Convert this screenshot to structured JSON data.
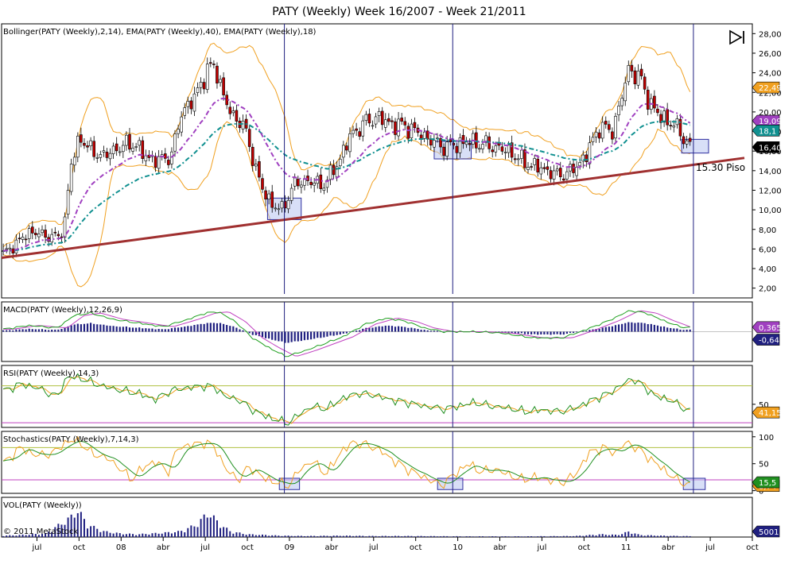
{
  "title": "PATY (Weekly)  Week 16/2007 - Week 21/2011",
  "copyright": "© 2011 MetaStock",
  "annotation": "15.30 Piso",
  "x_axis": {
    "labels": [
      "jul",
      "oct",
      "08",
      "abr",
      "jul",
      "oct",
      "09",
      "abr",
      "jul",
      "oct",
      "10",
      "abr",
      "jul",
      "oct",
      "11",
      "abr",
      "jul",
      "oct"
    ],
    "positions": [
      2007.5,
      2007.75,
      2008.0,
      2008.25,
      2008.5,
      2008.75,
      2009.0,
      2009.25,
      2009.5,
      2009.75,
      2010.0,
      2010.25,
      2010.5,
      2010.75,
      2011.0,
      2011.25,
      2011.5,
      2011.75
    ],
    "xlim": [
      2007.29,
      2011.75
    ]
  },
  "colors": {
    "candle_up": "#ffffff",
    "candle_down": "#c00000",
    "bollinger": "#f0a020",
    "ema40": "#109090",
    "ema18": "#a040c0",
    "trendline": "#a03030",
    "vline": "#202080",
    "macd_line": "#20a020",
    "macd_signal": "#c040c0",
    "macd_hist": "#202080",
    "rsi_line": "#209020",
    "rsi_signal": "#f0a020",
    "stoch_k": "#f0a020",
    "stoch_d": "#209020",
    "volume": "#202080",
    "box_fill": "#b8c4f0",
    "box_stroke": "#3030a0",
    "ref_line_upper": "#b0c040",
    "ref_line_lower": "#c040c0"
  },
  "chart_data": [
    {
      "type": "candlestick",
      "name": "price",
      "label": "Bollinger(PATY (Weekly),2,14), EMA(PATY (Weekly),40), EMA(PATY (Weekly),18)",
      "ylim": [
        1,
        29
      ],
      "yticks": [
        2,
        4,
        6,
        8,
        10,
        12,
        14,
        16,
        18,
        20,
        22,
        24,
        26,
        28
      ],
      "ytick_labels": [
        "2,00",
        "4,00",
        "6,00",
        "8,00",
        "10,00",
        "12,00",
        "14,00",
        "16,00",
        "18,00",
        "20,00",
        "22,00",
        "24,00",
        "26,00",
        "28,00"
      ],
      "close_key": [
        [
          2007.3,
          5.5
        ],
        [
          2007.38,
          6.6
        ],
        [
          2007.46,
          7.8
        ],
        [
          2007.54,
          7.4
        ],
        [
          2007.62,
          7.2
        ],
        [
          2007.66,
          8.0
        ],
        [
          2007.7,
          14.5
        ],
        [
          2007.76,
          17.5
        ],
        [
          2007.82,
          16.0
        ],
        [
          2007.9,
          15.5
        ],
        [
          2008.0,
          16.5
        ],
        [
          2008.08,
          16.8
        ],
        [
          2008.14,
          15.5
        ],
        [
          2008.22,
          15.0
        ],
        [
          2008.3,
          15.6
        ],
        [
          2008.36,
          20.0
        ],
        [
          2008.44,
          21.5
        ],
        [
          2008.5,
          24.0
        ],
        [
          2008.56,
          24.8
        ],
        [
          2008.6,
          22.0
        ],
        [
          2008.66,
          19.5
        ],
        [
          2008.72,
          19.0
        ],
        [
          2008.78,
          15.5
        ],
        [
          2008.84,
          12.0
        ],
        [
          2008.9,
          10.5
        ],
        [
          2008.96,
          10.0
        ],
        [
          2009.02,
          12.5
        ],
        [
          2009.1,
          13.0
        ],
        [
          2009.2,
          12.5
        ],
        [
          2009.28,
          14.5
        ],
        [
          2009.36,
          17.5
        ],
        [
          2009.44,
          18.8
        ],
        [
          2009.52,
          19.5
        ],
        [
          2009.6,
          18.8
        ],
        [
          2009.7,
          18.5
        ],
        [
          2009.8,
          17.5
        ],
        [
          2009.9,
          16.5
        ],
        [
          2009.98,
          16.5
        ],
        [
          2010.04,
          17.0
        ],
        [
          2010.12,
          16.8
        ],
        [
          2010.2,
          16.5
        ],
        [
          2010.3,
          16.0
        ],
        [
          2010.4,
          14.8
        ],
        [
          2010.5,
          14.2
        ],
        [
          2010.6,
          13.5
        ],
        [
          2010.68,
          14.0
        ],
        [
          2010.76,
          15.5
        ],
        [
          2010.84,
          18.5
        ],
        [
          2010.92,
          18.0
        ],
        [
          2010.98,
          22.0
        ],
        [
          2011.02,
          24.5
        ],
        [
          2011.08,
          23.5
        ],
        [
          2011.14,
          21.0
        ],
        [
          2011.2,
          19.5
        ],
        [
          2011.26,
          19.0
        ],
        [
          2011.32,
          18.0
        ],
        [
          2011.38,
          16.4
        ]
      ],
      "bands": {
        "period": 14,
        "stdev": 2
      },
      "ema_periods": [
        40,
        18
      ],
      "trendline": {
        "from": [
          2007.29,
          5.1
        ],
        "to": [
          2011.75,
          15.5
        ]
      },
      "vlines": [
        2008.97,
        2009.97,
        2011.4
      ],
      "boxes": [
        {
          "x": [
            2008.87,
            2009.07
          ],
          "y": [
            9.0,
            11.2
          ]
        },
        {
          "x": [
            2009.86,
            2010.08
          ],
          "y": [
            15.2,
            17.0
          ]
        },
        {
          "x": [
            2011.33,
            2011.49
          ],
          "y": [
            15.8,
            17.2
          ]
        }
      ],
      "last_values": [
        {
          "label": "22,49",
          "value": 22.49,
          "color": "#f0a020"
        },
        {
          "label": "19,09",
          "value": 19.09,
          "color": "#a040c0"
        },
        {
          "label": "18,1",
          "value": 18.1,
          "color": "#109090"
        },
        {
          "label": "16,40",
          "value": 16.4,
          "color": "#000000"
        }
      ]
    },
    {
      "type": "macd",
      "name": "macd",
      "label": "MACD(PATY (Weekly),12,26,9)",
      "ylim": [
        -2.4,
        2.4
      ],
      "line_key": [
        [
          2007.3,
          0.2
        ],
        [
          2007.45,
          0.5
        ],
        [
          2007.62,
          0.3
        ],
        [
          2007.72,
          1.3
        ],
        [
          2007.82,
          1.5
        ],
        [
          2007.95,
          1.0
        ],
        [
          2008.1,
          0.7
        ],
        [
          2008.25,
          0.4
        ],
        [
          2008.4,
          1.0
        ],
        [
          2008.5,
          1.5
        ],
        [
          2008.58,
          1.6
        ],
        [
          2008.68,
          0.8
        ],
        [
          2008.78,
          -0.5
        ],
        [
          2008.88,
          -1.3
        ],
        [
          2008.98,
          -2.0
        ],
        [
          2009.1,
          -1.5
        ],
        [
          2009.22,
          -0.9
        ],
        [
          2009.32,
          -0.4
        ],
        [
          2009.45,
          0.6
        ],
        [
          2009.58,
          1.1
        ],
        [
          2009.7,
          0.8
        ],
        [
          2009.8,
          0.3
        ],
        [
          2009.92,
          0.0
        ],
        [
          2010.1,
          0.0
        ],
        [
          2010.25,
          -0.1
        ],
        [
          2010.45,
          -0.5
        ],
        [
          2010.62,
          -0.5
        ],
        [
          2010.75,
          0.1
        ],
        [
          2010.9,
          0.9
        ],
        [
          2011.02,
          1.7
        ],
        [
          2011.12,
          1.5
        ],
        [
          2011.22,
          0.9
        ],
        [
          2011.32,
          0.4
        ],
        [
          2011.4,
          0.3
        ]
      ],
      "signal_period": 9,
      "last_values": [
        {
          "label": "0,365",
          "value": 0.365,
          "color": "#a040c0"
        },
        {
          "label": "-0,643",
          "value": -0.643,
          "color": "#202080"
        }
      ]
    },
    {
      "type": "rsi",
      "name": "rsi",
      "label": "RSI(PATY (Weekly),14,3)",
      "ylim": [
        25,
        92
      ],
      "yticks": [
        50
      ],
      "ytick_labels": [
        "50"
      ],
      "ref_lines": [
        70,
        30
      ],
      "line_key": [
        [
          2007.3,
          64
        ],
        [
          2007.4,
          72
        ],
        [
          2007.5,
          68
        ],
        [
          2007.62,
          58
        ],
        [
          2007.68,
          80
        ],
        [
          2007.76,
          78
        ],
        [
          2007.88,
          70
        ],
        [
          2008.0,
          65
        ],
        [
          2008.1,
          62
        ],
        [
          2008.2,
          55
        ],
        [
          2008.3,
          65
        ],
        [
          2008.4,
          68
        ],
        [
          2008.5,
          70
        ],
        [
          2008.56,
          68
        ],
        [
          2008.62,
          58
        ],
        [
          2008.7,
          55
        ],
        [
          2008.78,
          44
        ],
        [
          2008.86,
          37
        ],
        [
          2008.94,
          32
        ],
        [
          2009.0,
          30
        ],
        [
          2009.06,
          40
        ],
        [
          2009.14,
          48
        ],
        [
          2009.22,
          45
        ],
        [
          2009.3,
          55
        ],
        [
          2009.4,
          62
        ],
        [
          2009.5,
          60
        ],
        [
          2009.6,
          55
        ],
        [
          2009.7,
          52
        ],
        [
          2009.8,
          48
        ],
        [
          2009.92,
          45
        ],
        [
          2010.0,
          48
        ],
        [
          2010.1,
          52
        ],
        [
          2010.2,
          48
        ],
        [
          2010.3,
          46
        ],
        [
          2010.4,
          42
        ],
        [
          2010.5,
          44
        ],
        [
          2010.6,
          42
        ],
        [
          2010.7,
          46
        ],
        [
          2010.8,
          55
        ],
        [
          2010.9,
          62
        ],
        [
          2010.98,
          72
        ],
        [
          2011.04,
          78
        ],
        [
          2011.1,
          70
        ],
        [
          2011.18,
          58
        ],
        [
          2011.26,
          55
        ],
        [
          2011.34,
          46
        ],
        [
          2011.4,
          41
        ]
      ],
      "signal_period": 3,
      "last_values": [
        {
          "label": "41,15",
          "value": 41.15,
          "color": "#f0a020"
        }
      ]
    },
    {
      "type": "stochastic",
      "name": "stochastic",
      "label": "Stochastics(PATY (Weekly),7,14,3)",
      "ylim": [
        -5,
        110
      ],
      "yticks": [
        100,
        50,
        0
      ],
      "ytick_labels": [
        "100",
        "50",
        "0"
      ],
      "ref_lines": [
        80,
        20
      ],
      "k_key": [
        [
          2007.3,
          50
        ],
        [
          2007.4,
          80
        ],
        [
          2007.5,
          65
        ],
        [
          2007.6,
          70
        ],
        [
          2007.66,
          88
        ],
        [
          2007.74,
          95
        ],
        [
          2007.82,
          70
        ],
        [
          2007.92,
          60
        ],
        [
          2008.0,
          40
        ],
        [
          2008.06,
          20
        ],
        [
          2008.12,
          40
        ],
        [
          2008.2,
          55
        ],
        [
          2008.28,
          35
        ],
        [
          2008.34,
          80
        ],
        [
          2008.42,
          85
        ],
        [
          2008.5,
          90
        ],
        [
          2008.56,
          80
        ],
        [
          2008.62,
          40
        ],
        [
          2008.7,
          20
        ],
        [
          2008.76,
          45
        ],
        [
          2008.84,
          25
        ],
        [
          2008.92,
          15
        ],
        [
          2009.0,
          10
        ],
        [
          2009.06,
          40
        ],
        [
          2009.14,
          55
        ],
        [
          2009.22,
          30
        ],
        [
          2009.3,
          70
        ],
        [
          2009.38,
          90
        ],
        [
          2009.46,
          85
        ],
        [
          2009.54,
          75
        ],
        [
          2009.6,
          60
        ],
        [
          2009.7,
          40
        ],
        [
          2009.8,
          25
        ],
        [
          2009.9,
          10
        ],
        [
          2009.98,
          30
        ],
        [
          2010.06,
          50
        ],
        [
          2010.14,
          35
        ],
        [
          2010.22,
          40
        ],
        [
          2010.3,
          30
        ],
        [
          2010.38,
          20
        ],
        [
          2010.46,
          25
        ],
        [
          2010.54,
          20
        ],
        [
          2010.62,
          15
        ],
        [
          2010.7,
          30
        ],
        [
          2010.78,
          70
        ],
        [
          2010.86,
          80
        ],
        [
          2010.94,
          70
        ],
        [
          2011.0,
          90
        ],
        [
          2011.06,
          80
        ],
        [
          2011.14,
          60
        ],
        [
          2011.22,
          40
        ],
        [
          2011.3,
          20
        ],
        [
          2011.38,
          10
        ],
        [
          2011.4,
          8.74
        ]
      ],
      "d_period": 3,
      "boxes": [
        {
          "x": [
            2008.94,
            2009.06
          ],
          "y": [
            2,
            23
          ]
        },
        {
          "x": [
            2009.88,
            2010.03
          ],
          "y": [
            2,
            23
          ]
        },
        {
          "x": [
            2011.34,
            2011.47
          ],
          "y": [
            2,
            23
          ]
        }
      ],
      "last_values": [
        {
          "label": "8,74",
          "value": 8.74,
          "color": "#f0a020"
        },
        {
          "label": "15,5",
          "value": 15.5,
          "color": "#209020"
        }
      ]
    },
    {
      "type": "bar",
      "name": "volume",
      "label": "VOL(PATY (Weekly))",
      "ylim": [
        0,
        50000
      ],
      "key": [
        [
          2007.3,
          2000
        ],
        [
          2007.4,
          3000
        ],
        [
          2007.55,
          5000
        ],
        [
          2007.7,
          28000
        ],
        [
          2007.74,
          40000
        ],
        [
          2007.8,
          18000
        ],
        [
          2007.9,
          8000
        ],
        [
          2008.0,
          5000
        ],
        [
          2008.1,
          4000
        ],
        [
          2008.25,
          6000
        ],
        [
          2008.35,
          8000
        ],
        [
          2008.45,
          18000
        ],
        [
          2008.52,
          36000
        ],
        [
          2008.58,
          20000
        ],
        [
          2008.65,
          8000
        ],
        [
          2008.75,
          4000
        ],
        [
          2008.85,
          3000
        ],
        [
          2008.95,
          2000
        ],
        [
          2009.1,
          1500
        ],
        [
          2009.3,
          2000
        ],
        [
          2009.5,
          1500
        ],
        [
          2009.7,
          1500
        ],
        [
          2009.9,
          1200
        ],
        [
          2010.1,
          1000
        ],
        [
          2010.4,
          1000
        ],
        [
          2010.7,
          1500
        ],
        [
          2010.85,
          4000
        ],
        [
          2010.95,
          3000
        ],
        [
          2011.02,
          8000
        ],
        [
          2011.08,
          3000
        ],
        [
          2011.2,
          2000
        ],
        [
          2011.4,
          1200
        ]
      ],
      "last_values": [
        {
          "label": "5001",
          "value": 5001,
          "color": "#202080"
        }
      ]
    }
  ]
}
